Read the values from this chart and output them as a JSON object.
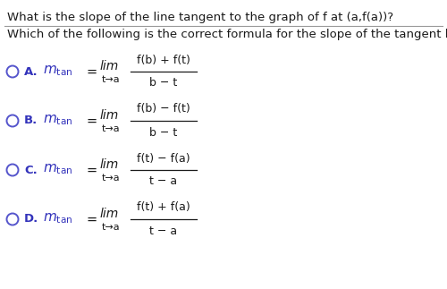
{
  "title_question": "What is the slope of the line tangent to the graph of f at (a,f(a))?",
  "subtitle_question": "Which of the following is the correct formula for the slope of the tangent line?",
  "background_color": "#ffffff",
  "text_color": "#1a1a1a",
  "label_color": "#3333bb",
  "separator_color": "#999999",
  "circle_color": "#5555cc",
  "options": [
    {
      "letter": "A.",
      "numerator": "f(b) + f(t)",
      "denominator": "b − t"
    },
    {
      "letter": "B.",
      "numerator": "f(b) − f(t)",
      "denominator": "b − t"
    },
    {
      "letter": "C.",
      "numerator": "f(t) − f(a)",
      "denominator": "t − a"
    },
    {
      "letter": "D.",
      "numerator": "f(t) + f(a)",
      "denominator": "t − a"
    }
  ],
  "limit_sub": "t→a",
  "fig_width": 5.0,
  "fig_height": 3.23,
  "dpi": 100
}
